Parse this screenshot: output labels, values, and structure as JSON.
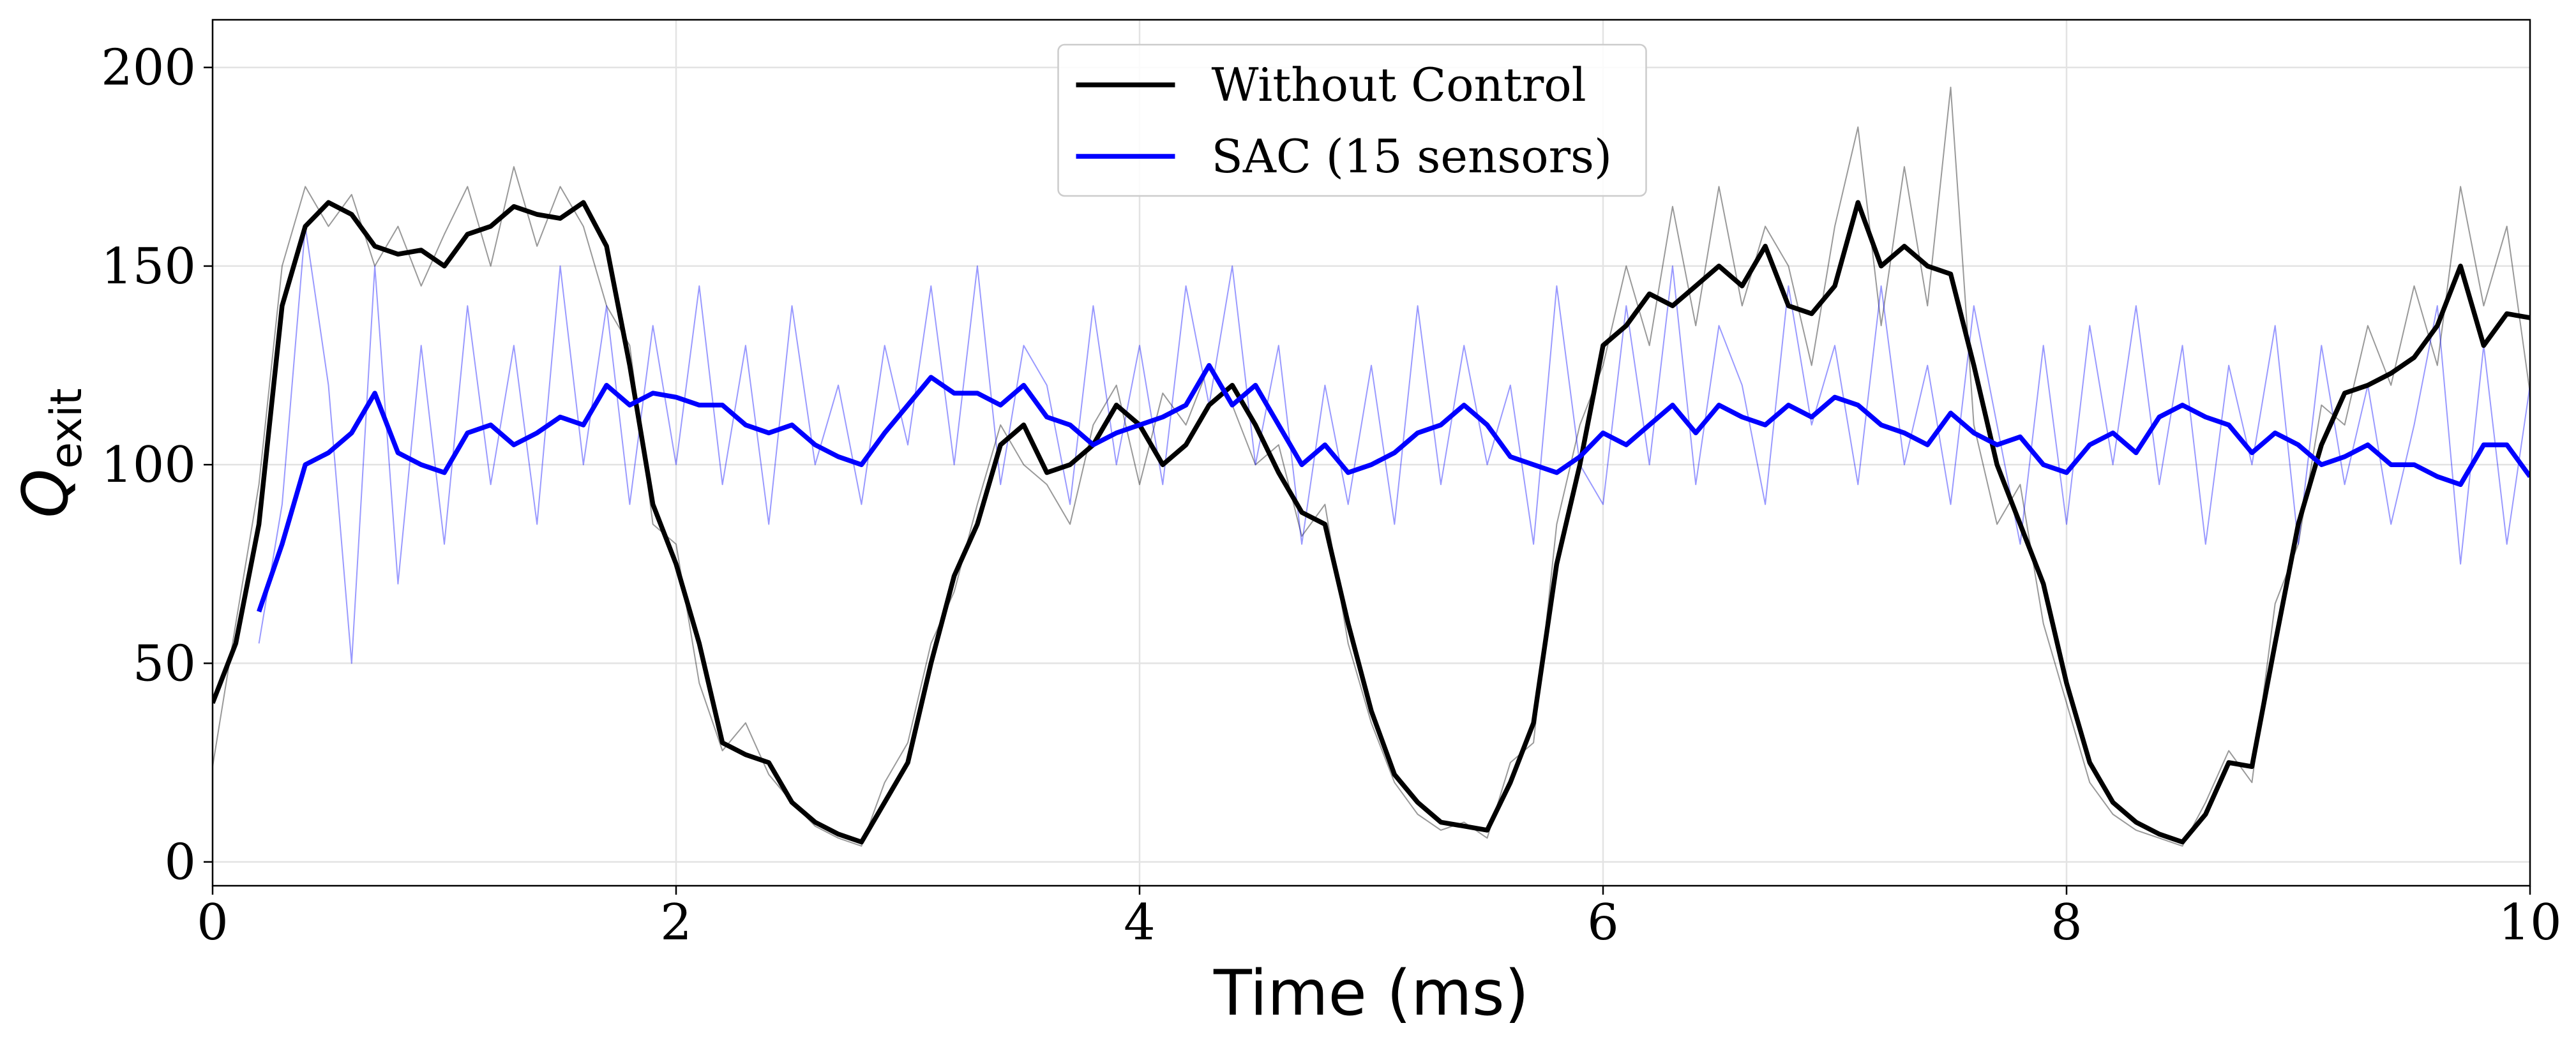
{
  "chart_data": {
    "type": "line",
    "x_label": "Time (ms)",
    "y_label": "Q",
    "y_label_subscript": "exit",
    "xlim": [
      0,
      10
    ],
    "xticks": [
      0,
      2,
      4,
      6,
      8,
      10
    ],
    "ylim": [
      -6,
      212
    ],
    "yticks": [
      0,
      50,
      100,
      150,
      200
    ],
    "grid": true,
    "legend": "upper center",
    "series": [
      {
        "color": "#000000",
        "alpha": 0.4,
        "x": [
          0,
          0.1,
          0.2,
          0.3,
          0.4,
          0.5,
          0.6,
          0.7,
          0.8,
          0.9,
          1,
          1.1,
          1.2,
          1.3,
          1.4,
          1.5,
          1.6,
          1.7,
          1.8,
          1.9,
          2,
          2.1,
          2.2,
          2.3,
          2.4,
          2.5,
          2.6,
          2.7,
          2.8,
          2.9,
          3,
          3.1,
          3.2,
          3.3,
          3.4,
          3.5,
          3.6,
          3.7,
          3.8,
          3.9,
          4,
          4.1,
          4.2,
          4.3,
          4.4,
          4.5,
          4.6,
          4.7,
          4.8,
          4.9,
          5,
          5.1,
          5.2,
          5.3,
          5.4,
          5.5,
          5.6,
          5.7,
          5.8,
          5.9,
          6,
          6.1,
          6.2,
          6.3,
          6.4,
          6.5,
          6.6,
          6.7,
          6.8,
          6.9,
          7,
          7.1,
          7.2,
          7.3,
          7.4,
          7.5,
          7.6,
          7.7,
          7.8,
          7.9,
          8,
          8.1,
          8.2,
          8.3,
          8.4,
          8.5,
          8.6,
          8.7,
          8.8,
          8.9,
          9,
          9.1,
          9.2,
          9.3,
          9.4,
          9.5,
          9.6,
          9.7,
          9.8,
          9.9,
          10
        ],
        "values": [
          24,
          60,
          95,
          150,
          170,
          160,
          168,
          150,
          160,
          145,
          158,
          170,
          150,
          175,
          155,
          170,
          160,
          140,
          130,
          85,
          80,
          45,
          28,
          35,
          22,
          15,
          9,
          6,
          4,
          20,
          30,
          55,
          68,
          90,
          110,
          100,
          95,
          85,
          110,
          120,
          95,
          118,
          110,
          125,
          115,
          100,
          105,
          82,
          90,
          55,
          35,
          20,
          12,
          8,
          10,
          6,
          25,
          30,
          85,
          110,
          125,
          150,
          130,
          165,
          135,
          170,
          140,
          160,
          150,
          125,
          160,
          185,
          135,
          175,
          140,
          195,
          110,
          85,
          95,
          60,
          40,
          20,
          12,
          8,
          6,
          4,
          15,
          28,
          20,
          65,
          80,
          115,
          110,
          135,
          120,
          145,
          125,
          170,
          140,
          160,
          118
        ]
      },
      {
        "color": "#0000ff",
        "alpha": 0.4,
        "x": [
          0.2,
          0.3,
          0.4,
          0.5,
          0.6,
          0.7,
          0.8,
          0.9,
          1,
          1.1,
          1.2,
          1.3,
          1.4,
          1.5,
          1.6,
          1.7,
          1.8,
          1.9,
          2,
          2.1,
          2.2,
          2.3,
          2.4,
          2.5,
          2.6,
          2.7,
          2.8,
          2.9,
          3,
          3.1,
          3.2,
          3.3,
          3.4,
          3.5,
          3.6,
          3.7,
          3.8,
          3.9,
          4,
          4.1,
          4.2,
          4.3,
          4.4,
          4.5,
          4.6,
          4.7,
          4.8,
          4.9,
          5,
          5.1,
          5.2,
          5.3,
          5.4,
          5.5,
          5.6,
          5.7,
          5.8,
          5.9,
          6,
          6.1,
          6.2,
          6.3,
          6.4,
          6.5,
          6.6,
          6.7,
          6.8,
          6.9,
          7,
          7.1,
          7.2,
          7.3,
          7.4,
          7.5,
          7.6,
          7.7,
          7.8,
          7.9,
          8,
          8.1,
          8.2,
          8.3,
          8.4,
          8.5,
          8.6,
          8.7,
          8.8,
          8.9,
          9,
          9.1,
          9.2,
          9.3,
          9.4,
          9.5,
          9.6,
          9.7,
          9.8,
          9.9,
          10
        ],
        "values": [
          55,
          90,
          160,
          120,
          50,
          150,
          70,
          130,
          80,
          140,
          95,
          130,
          85,
          150,
          100,
          140,
          90,
          135,
          100,
          145,
          95,
          130,
          85,
          140,
          100,
          120,
          90,
          130,
          105,
          145,
          100,
          150,
          95,
          130,
          120,
          90,
          140,
          100,
          130,
          95,
          145,
          115,
          150,
          100,
          130,
          80,
          120,
          90,
          125,
          85,
          140,
          95,
          130,
          100,
          120,
          80,
          145,
          100,
          90,
          140,
          100,
          150,
          95,
          135,
          120,
          90,
          145,
          110,
          130,
          95,
          145,
          100,
          125,
          90,
          140,
          110,
          80,
          130,
          85,
          135,
          100,
          140,
          95,
          130,
          80,
          125,
          100,
          135,
          80,
          130,
          95,
          120,
          85,
          110,
          140,
          75,
          130,
          80,
          120
        ]
      },
      {
        "name": "Without Control",
        "color": "#000000",
        "alpha": 1,
        "x": [
          0,
          0.1,
          0.2,
          0.3,
          0.4,
          0.5,
          0.6,
          0.7,
          0.8,
          0.9,
          1,
          1.1,
          1.2,
          1.3,
          1.4,
          1.5,
          1.6,
          1.7,
          1.8,
          1.9,
          2,
          2.1,
          2.2,
          2.3,
          2.4,
          2.5,
          2.6,
          2.7,
          2.8,
          2.9,
          3,
          3.1,
          3.2,
          3.3,
          3.4,
          3.5,
          3.6,
          3.7,
          3.8,
          3.9,
          4,
          4.1,
          4.2,
          4.3,
          4.4,
          4.5,
          4.6,
          4.7,
          4.8,
          4.9,
          5,
          5.1,
          5.2,
          5.3,
          5.4,
          5.5,
          5.6,
          5.7,
          5.8,
          5.9,
          6,
          6.1,
          6.2,
          6.3,
          6.4,
          6.5,
          6.6,
          6.7,
          6.8,
          6.9,
          7,
          7.1,
          7.2,
          7.3,
          7.4,
          7.5,
          7.6,
          7.7,
          7.8,
          7.9,
          8,
          8.1,
          8.2,
          8.3,
          8.4,
          8.5,
          8.6,
          8.7,
          8.8,
          8.9,
          9,
          9.1,
          9.2,
          9.3,
          9.4,
          9.5,
          9.6,
          9.7,
          9.8,
          9.9,
          10
        ],
        "values": [
          40,
          55,
          85,
          140,
          160,
          166,
          163,
          155,
          153,
          154,
          150,
          158,
          160,
          165,
          163,
          162,
          166,
          155,
          125,
          90,
          75,
          55,
          30,
          27,
          25,
          15,
          10,
          7,
          5,
          15,
          25,
          50,
          72,
          85,
          105,
          110,
          98,
          100,
          105,
          115,
          110,
          100,
          105,
          115,
          120,
          110,
          98,
          88,
          85,
          60,
          38,
          22,
          15,
          10,
          9,
          8,
          20,
          35,
          75,
          100,
          130,
          135,
          143,
          140,
          145,
          150,
          145,
          155,
          140,
          138,
          145,
          166,
          150,
          155,
          150,
          148,
          125,
          100,
          85,
          70,
          45,
          25,
          15,
          10,
          7,
          5,
          12,
          25,
          24,
          55,
          85,
          105,
          118,
          120,
          123,
          127,
          135,
          150,
          130,
          138,
          137
        ]
      },
      {
        "name": "SAC (15 sensors)",
        "color": "#0000ff",
        "alpha": 1,
        "x": [
          0.2,
          0.3,
          0.4,
          0.5,
          0.6,
          0.7,
          0.8,
          0.9,
          1,
          1.1,
          1.2,
          1.3,
          1.4,
          1.5,
          1.6,
          1.7,
          1.8,
          1.9,
          2,
          2.1,
          2.2,
          2.3,
          2.4,
          2.5,
          2.6,
          2.7,
          2.8,
          2.9,
          3,
          3.1,
          3.2,
          3.3,
          3.4,
          3.5,
          3.6,
          3.7,
          3.8,
          3.9,
          4,
          4.1,
          4.2,
          4.3,
          4.4,
          4.5,
          4.6,
          4.7,
          4.8,
          4.9,
          5,
          5.1,
          5.2,
          5.3,
          5.4,
          5.5,
          5.6,
          5.7,
          5.8,
          5.9,
          6,
          6.1,
          6.2,
          6.3,
          6.4,
          6.5,
          6.6,
          6.7,
          6.8,
          6.9,
          7,
          7.1,
          7.2,
          7.3,
          7.4,
          7.5,
          7.6,
          7.7,
          7.8,
          7.9,
          8,
          8.1,
          8.2,
          8.3,
          8.4,
          8.5,
          8.6,
          8.7,
          8.8,
          8.9,
          9,
          9.1,
          9.2,
          9.3,
          9.4,
          9.5,
          9.6,
          9.7,
          9.8,
          9.9,
          10
        ],
        "values": [
          63,
          80,
          100,
          103,
          108,
          118,
          103,
          100,
          98,
          108,
          110,
          105,
          108,
          112,
          110,
          120,
          115,
          118,
          117,
          115,
          115,
          110,
          108,
          110,
          105,
          102,
          100,
          108,
          115,
          122,
          118,
          118,
          115,
          120,
          112,
          110,
          105,
          108,
          110,
          112,
          115,
          125,
          115,
          120,
          110,
          100,
          105,
          98,
          100,
          103,
          108,
          110,
          115,
          110,
          102,
          100,
          98,
          102,
          108,
          105,
          110,
          115,
          108,
          115,
          112,
          110,
          115,
          112,
          117,
          115,
          110,
          108,
          105,
          113,
          108,
          105,
          107,
          100,
          98,
          105,
          108,
          103,
          112,
          115,
          112,
          110,
          103,
          108,
          105,
          100,
          102,
          105,
          100,
          100,
          97,
          95,
          105,
          105,
          97
        ]
      }
    ]
  }
}
